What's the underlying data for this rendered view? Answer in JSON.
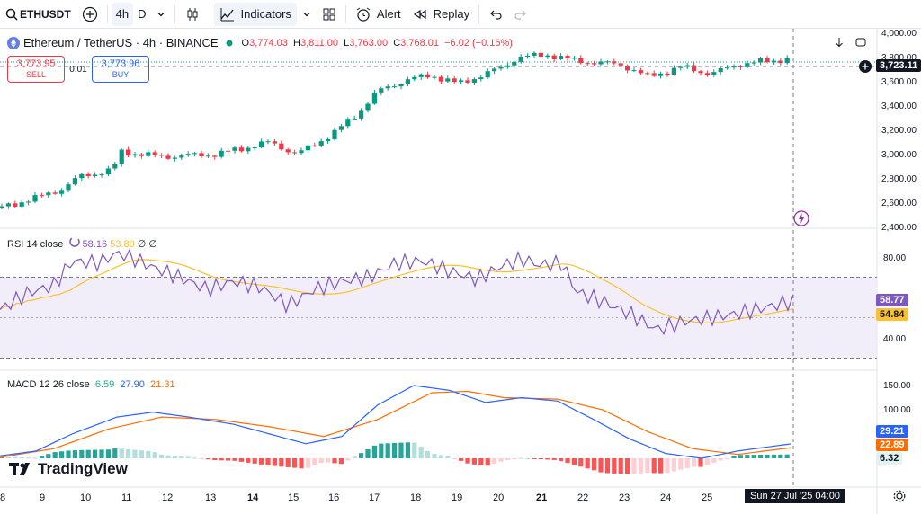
{
  "toolbar": {
    "symbol": "ETHUSDT",
    "interval_4h": "4h",
    "interval_d": "D",
    "indicators_label": "Indicators",
    "alert_label": "Alert",
    "replay_label": "Replay"
  },
  "legend": {
    "title": "Ethereum / TetherUS · 4h · BINANCE",
    "open_key": "O",
    "open": "3,774.03",
    "high_key": "H",
    "high": "3,811.00",
    "low_key": "L",
    "low": "3,763.00",
    "close_key": "C",
    "close": "3,768.01",
    "change": "−6.02 (−0.16%)"
  },
  "trade": {
    "sell_price": "3,773.95",
    "sell_label": "SELL",
    "spread": "0.01",
    "buy_price": "3,773.96",
    "buy_label": "BUY"
  },
  "price_axis": [
    "4,000.00",
    "3,800.00",
    "3,600.00",
    "3,400.00",
    "3,200.00",
    "3,000.00",
    "2,800.00",
    "2,600.00",
    "2,400.00"
  ],
  "crosshair_price": "3,723.11",
  "rsi": {
    "label": "RSI 14 close",
    "value": "58.16",
    "ma": "53.80",
    "extra": "∅ ∅",
    "axis": [
      "80.00",
      "40.00"
    ],
    "tag_value": "58.77",
    "tag_ma": "54.84"
  },
  "macd": {
    "label": "MACD 12 26 close",
    "hist": "6.59",
    "macd": "27.90",
    "signal": "21.31",
    "axis": [
      "150.00",
      "100.00"
    ],
    "tag_macd": "29.21",
    "tag_signal": "22.89",
    "tag_hist": "6.32"
  },
  "time_axis": [
    {
      "label": "8",
      "bold": false
    },
    {
      "label": "9",
      "bold": false
    },
    {
      "label": "10",
      "bold": false
    },
    {
      "label": "11",
      "bold": false
    },
    {
      "label": "12",
      "bold": false
    },
    {
      "label": "13",
      "bold": false
    },
    {
      "label": "14",
      "bold": true
    },
    {
      "label": "15",
      "bold": false
    },
    {
      "label": "16",
      "bold": false
    },
    {
      "label": "17",
      "bold": false
    },
    {
      "label": "18",
      "bold": false
    },
    {
      "label": "19",
      "bold": false
    },
    {
      "label": "20",
      "bold": false
    },
    {
      "label": "21",
      "bold": true
    },
    {
      "label": "22",
      "bold": false
    },
    {
      "label": "23",
      "bold": false
    },
    {
      "label": "24",
      "bold": false
    },
    {
      "label": "25",
      "bold": false
    }
  ],
  "crosshair_time": "Sun 27 Jul '25  04:00",
  "watermark": "TradingView",
  "colors": {
    "up": "#089981",
    "down": "#f23645",
    "rsi": "#7e57c2",
    "rsi_ma": "#fbc02d",
    "macd": "#2962ff",
    "signal": "#ff6d00",
    "hist_up": "#26a69a",
    "hist_up_light": "#b2dfdb",
    "hist_down": "#ff5252",
    "hist_down_light": "#ffcdd2"
  }
}
